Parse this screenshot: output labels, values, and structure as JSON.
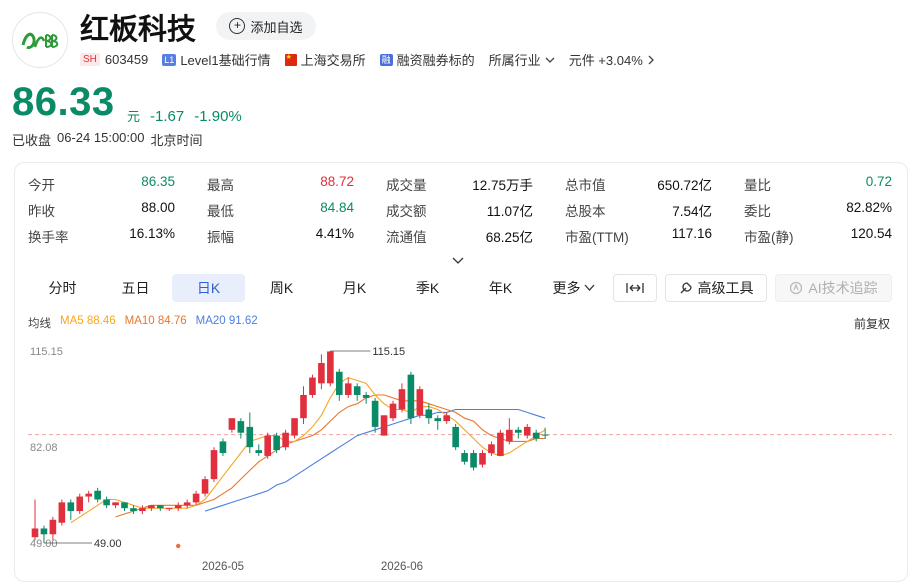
{
  "header": {
    "name": "红板科技",
    "add_watch": "添加自选",
    "market_tag": "SH",
    "code": "603459",
    "level1_tag": "L1",
    "level1": "Level1基础行情",
    "exchange": "上海交易所",
    "margin_tag": "融",
    "margin": "融资融券标的",
    "industry_label": "所属行业",
    "industry_value": "元件 +3.04%"
  },
  "quote": {
    "price": "86.33",
    "unit": "元",
    "change": "-1.67",
    "change_pct": "-1.90%",
    "status": "已收盘",
    "time": "06-24 15:00:00",
    "timezone": "北京时间"
  },
  "stats": [
    {
      "label": "今开",
      "value": "86.35",
      "color": "green"
    },
    {
      "label": "最高",
      "value": "88.72",
      "color": "red"
    },
    {
      "label": "成交量",
      "value": "12.75万手",
      "color": "blk"
    },
    {
      "label": "总市值",
      "value": "650.72亿",
      "color": "blk"
    },
    {
      "label": "量比",
      "value": "0.72",
      "color": "green"
    },
    {
      "label": "昨收",
      "value": "88.00",
      "color": "blk"
    },
    {
      "label": "最低",
      "value": "84.84",
      "color": "green"
    },
    {
      "label": "成交额",
      "value": "11.07亿",
      "color": "blk"
    },
    {
      "label": "总股本",
      "value": "7.54亿",
      "color": "blk"
    },
    {
      "label": "委比",
      "value": "82.82%",
      "color": "blk"
    },
    {
      "label": "换手率",
      "value": "16.13%",
      "color": "blk"
    },
    {
      "label": "振幅",
      "value": "4.41%",
      "color": "blk"
    },
    {
      "label": "流通值",
      "value": "68.25亿",
      "color": "blk"
    },
    {
      "label": "市盈(TTM)",
      "value": "117.16",
      "color": "blk"
    },
    {
      "label": "市盈(静)",
      "value": "120.54",
      "color": "blk"
    }
  ],
  "tabs": [
    "分时",
    "五日",
    "日K",
    "周K",
    "月K",
    "季K",
    "年K",
    "更多"
  ],
  "active_tab": "日K",
  "tools": {
    "advanced": "高级工具",
    "ai": "AI技术追踪"
  },
  "indicators": {
    "label": "均线",
    "ma5": "MA5 88.46",
    "ma10": "MA10 84.76",
    "ma20": "MA20 91.62",
    "adjust": "前复权"
  },
  "colors": {
    "up": "#e0303d",
    "down": "#0a8a66",
    "ma5": "#f5a623",
    "ma10": "#e8772e",
    "ma20": "#4c7ee0"
  },
  "chart_data": {
    "type": "candlestick",
    "y_tick_labels": [
      "115.15",
      "82.08",
      "49.00"
    ],
    "max_label": "115.15",
    "min_label": "49.00",
    "x_tick_labels": [
      "2026-05",
      "2026-06"
    ],
    "ylim": [
      49.0,
      115.15
    ],
    "candles": [
      {
        "o": 51,
        "c": 54,
        "h": 64,
        "l": 50
      },
      {
        "o": 54,
        "c": 52,
        "h": 55,
        "l": 49
      },
      {
        "o": 52,
        "c": 57,
        "h": 58,
        "l": 50
      },
      {
        "o": 56,
        "c": 63,
        "h": 64,
        "l": 55
      },
      {
        "o": 63,
        "c": 60,
        "h": 64,
        "l": 57
      },
      {
        "o": 60,
        "c": 65,
        "h": 66,
        "l": 59
      },
      {
        "o": 65,
        "c": 66,
        "h": 67,
        "l": 63
      },
      {
        "o": 67,
        "c": 64,
        "h": 68,
        "l": 63
      },
      {
        "o": 64,
        "c": 62,
        "h": 65,
        "l": 61
      },
      {
        "o": 62,
        "c": 63,
        "h": 63,
        "l": 61
      },
      {
        "o": 63,
        "c": 61,
        "h": 63,
        "l": 60
      },
      {
        "o": 61,
        "c": 60,
        "h": 62,
        "l": 59
      },
      {
        "o": 60,
        "c": 61,
        "h": 62,
        "l": 59
      },
      {
        "o": 61,
        "c": 62,
        "h": 62,
        "l": 60
      },
      {
        "o": 62,
        "c": 61,
        "h": 62,
        "l": 60
      },
      {
        "o": 61,
        "c": 61,
        "h": 61,
        "l": 60
      },
      {
        "o": 61,
        "c": 62,
        "h": 63,
        "l": 60
      },
      {
        "o": 62,
        "c": 63,
        "h": 64,
        "l": 61
      },
      {
        "o": 63,
        "c": 66,
        "h": 67,
        "l": 62
      },
      {
        "o": 66,
        "c": 71,
        "h": 72,
        "l": 65
      },
      {
        "o": 71,
        "c": 81,
        "h": 82,
        "l": 70
      },
      {
        "o": 84,
        "c": 80,
        "h": 85,
        "l": 79
      },
      {
        "o": 88,
        "c": 92,
        "h": 92,
        "l": 87
      },
      {
        "o": 91,
        "c": 87,
        "h": 92,
        "l": 85
      },
      {
        "o": 89,
        "c": 82,
        "h": 94,
        "l": 80
      },
      {
        "o": 81,
        "c": 80,
        "h": 83,
        "l": 79
      },
      {
        "o": 79,
        "c": 86,
        "h": 87,
        "l": 78
      },
      {
        "o": 86,
        "c": 81,
        "h": 87,
        "l": 80
      },
      {
        "o": 82,
        "c": 87,
        "h": 88,
        "l": 81
      },
      {
        "o": 86,
        "c": 92,
        "h": 92,
        "l": 85
      },
      {
        "o": 92,
        "c": 100,
        "h": 103,
        "l": 90
      },
      {
        "o": 100,
        "c": 106,
        "h": 107,
        "l": 99
      },
      {
        "o": 104,
        "c": 111,
        "h": 114,
        "l": 102
      },
      {
        "o": 104,
        "c": 115,
        "h": 115.15,
        "l": 103
      },
      {
        "o": 108,
        "c": 100,
        "h": 109,
        "l": 98
      },
      {
        "o": 100,
        "c": 104,
        "h": 106,
        "l": 99
      },
      {
        "o": 103,
        "c": 100,
        "h": 104,
        "l": 98
      },
      {
        "o": 100,
        "c": 99,
        "h": 101,
        "l": 97
      },
      {
        "o": 98,
        "c": 89,
        "h": 99,
        "l": 87
      },
      {
        "o": 86,
        "c": 93,
        "h": 93,
        "l": 86
      },
      {
        "o": 92,
        "c": 97,
        "h": 98,
        "l": 91
      },
      {
        "o": 95,
        "c": 102,
        "h": 104,
        "l": 94
      },
      {
        "o": 107,
        "c": 92,
        "h": 108,
        "l": 90
      },
      {
        "o": 93,
        "c": 102,
        "h": 103,
        "l": 92
      },
      {
        "o": 95,
        "c": 92,
        "h": 97,
        "l": 90
      },
      {
        "o": 92,
        "c": 91,
        "h": 93,
        "l": 88
      },
      {
        "o": 91,
        "c": 93,
        "h": 94,
        "l": 90
      },
      {
        "o": 89,
        "c": 82,
        "h": 90,
        "l": 81
      },
      {
        "o": 80,
        "c": 77,
        "h": 81,
        "l": 76
      },
      {
        "o": 80,
        "c": 75,
        "h": 81,
        "l": 74
      },
      {
        "o": 76,
        "c": 80,
        "h": 81,
        "l": 75
      },
      {
        "o": 80,
        "c": 83,
        "h": 84,
        "l": 79
      },
      {
        "o": 79,
        "c": 87,
        "h": 88,
        "l": 79
      },
      {
        "o": 84,
        "c": 88,
        "h": 92,
        "l": 83
      },
      {
        "o": 88,
        "c": 87,
        "h": 89,
        "l": 85
      },
      {
        "o": 86,
        "c": 89,
        "h": 90,
        "l": 85
      },
      {
        "o": 87,
        "c": 85,
        "h": 88,
        "l": 84
      },
      {
        "o": 86.35,
        "c": 86.33,
        "h": 88.72,
        "l": 84.84
      }
    ],
    "ma5": [
      null,
      null,
      null,
      null,
      56,
      58,
      60,
      62,
      64,
      64,
      63,
      62,
      61,
      61,
      61,
      61,
      61,
      61,
      62,
      64,
      68,
      72,
      76,
      80,
      84,
      85,
      86,
      86,
      84,
      84,
      86,
      89,
      93,
      99,
      104,
      106,
      105,
      104,
      100,
      97,
      95,
      95,
      94,
      96,
      96,
      95,
      93,
      91,
      88,
      85,
      82,
      80,
      79,
      80,
      82,
      84,
      86,
      88
    ],
    "ma10": [
      null,
      null,
      null,
      null,
      null,
      null,
      null,
      null,
      null,
      58,
      59,
      60,
      61,
      62,
      62,
      62,
      62,
      62,
      62,
      63,
      64,
      66,
      68,
      71,
      74,
      77,
      79,
      81,
      83,
      84,
      85,
      86,
      88,
      91,
      94,
      96,
      97,
      99,
      100,
      100,
      99,
      98,
      98,
      98,
      97,
      96,
      95,
      94,
      92,
      91,
      88,
      86,
      85,
      84,
      84,
      84,
      85,
      85
    ],
    "ma20": [
      null,
      null,
      null,
      null,
      null,
      null,
      null,
      null,
      null,
      null,
      null,
      null,
      null,
      null,
      null,
      null,
      null,
      null,
      null,
      60,
      61,
      62,
      63,
      64,
      65,
      66,
      67,
      69,
      70,
      72,
      74,
      76,
      78,
      80,
      82,
      84,
      86,
      87,
      88,
      89,
      90,
      91,
      92,
      93,
      93,
      94,
      94,
      95,
      95,
      95,
      95,
      95,
      95,
      95,
      95,
      94,
      93,
      92
    ]
  }
}
